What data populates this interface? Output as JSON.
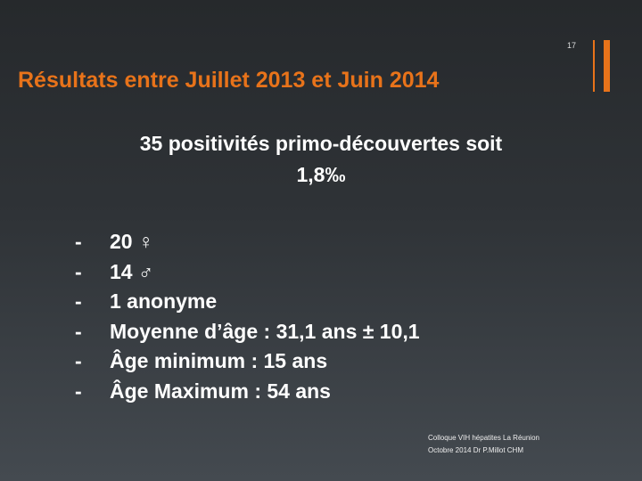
{
  "slide_number": "17",
  "title": "Résultats entre Juillet 2013 et Juin 2014",
  "subtitle": [
    "35 positivités primo-découvertes soit",
    "1,8‰"
  ],
  "bullets": [
    {
      "marker": "-",
      "text": "20 ♀"
    },
    {
      "marker": "-",
      "text": "14 ♂"
    },
    {
      "marker": "-",
      "text": "1 anonyme"
    },
    {
      "marker": "-",
      "text": "Moyenne d’âge : 31,1 ans ± 10,1"
    },
    {
      "marker": "-",
      "text": "Âge minimum : 15 ans"
    },
    {
      "marker": "-",
      "text": "Âge Maximum : 54 ans"
    }
  ],
  "footer": [
    "Colloque VIH hépatites La Réunion",
    "Octobre 2014 Dr P.Millot CHM"
  ]
}
